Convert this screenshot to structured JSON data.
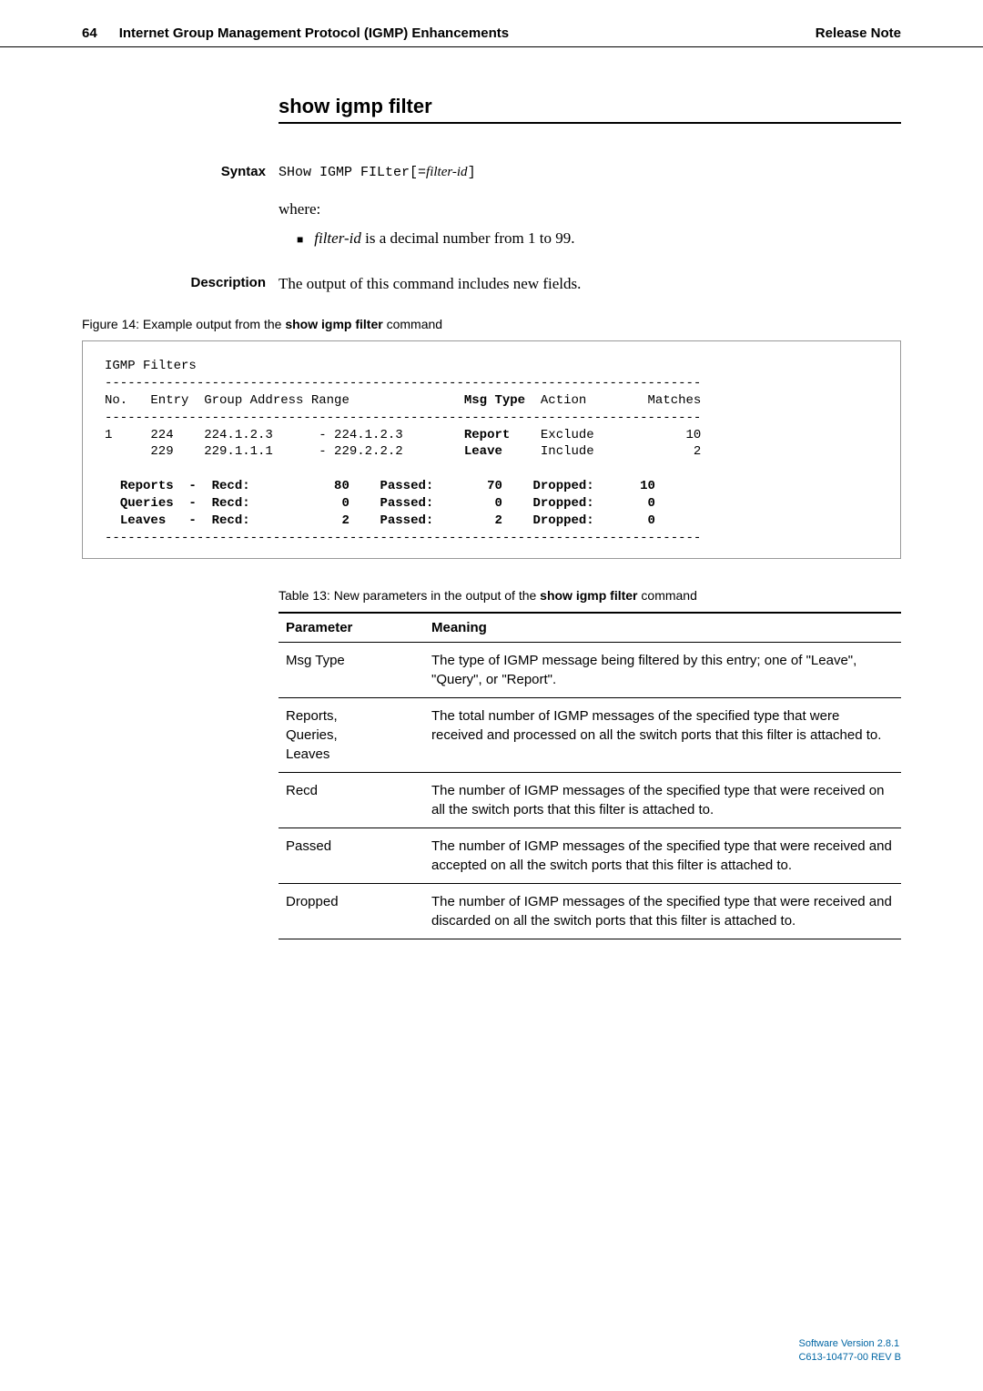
{
  "header": {
    "page_number": "64",
    "chapter_title": "Internet Group Management Protocol (IGMP) Enhancements",
    "note_label": "Release Note"
  },
  "section_title": "show igmp filter",
  "syntax": {
    "label": "Syntax",
    "command_prefix": "SHow IGMP FILter[=",
    "command_param": "filter-id",
    "command_suffix": "]",
    "where_label": "where:",
    "bullet_param": "filter-id",
    "bullet_rest": " is a decimal number from 1 to 99."
  },
  "description": {
    "label": "Description",
    "text": "The output of this command includes new fields."
  },
  "figure_caption_prefix": "Figure 14: Example output from the ",
  "figure_caption_bold": "show igmp filter",
  "figure_caption_suffix": " command",
  "code_output": {
    "title_line": "IGMP Filters",
    "hr": "------------------------------------------------------------------------------",
    "header_cols": {
      "no": "No.",
      "entry": "Entry",
      "group": "Group Address Range",
      "msgtype": "Msg Type",
      "action": "Action",
      "matches": "Matches"
    },
    "rows": [
      {
        "no": "1",
        "entry": "224",
        "group_from": "224.1.2.3",
        "group_to": "- 224.1.2.3",
        "msgtype": "Report",
        "action": "Exclude",
        "matches": "10"
      },
      {
        "no": "",
        "entry": "229",
        "group_from": "229.1.1.1",
        "group_to": "- 229.2.2.2",
        "msgtype": "Leave",
        "action": "Include",
        "matches": "2"
      }
    ],
    "summary": [
      {
        "label": "Reports",
        "recd_label": "Recd:",
        "recd": "80",
        "passed_label": "Passed:",
        "passed": "70",
        "dropped_label": "Dropped:",
        "dropped": "10"
      },
      {
        "label": "Queries",
        "recd_label": "Recd:",
        "recd": "0",
        "passed_label": "Passed:",
        "passed": "0",
        "dropped_label": "Dropped:",
        "dropped": "0"
      },
      {
        "label": "Leaves",
        "recd_label": "Recd:",
        "recd": "2",
        "passed_label": "Passed:",
        "passed": "2",
        "dropped_label": "Dropped:",
        "dropped": "0"
      }
    ]
  },
  "table_caption_prefix": "Table 13: New parameters in the output of the ",
  "table_caption_bold": "show igmp filter",
  "table_caption_suffix": " command",
  "param_table": {
    "headers": {
      "parameter": "Parameter",
      "meaning": "Meaning"
    },
    "rows": [
      {
        "param": "Msg Type",
        "meaning": "The type of IGMP message being filtered by this entry; one of \"Leave\", \"Query\", or \"Report\".",
        "indent": false
      },
      {
        "param": "Reports,\nQueries,\nLeaves",
        "meaning": "The total number of IGMP messages of the specified type that were received and processed on all the switch ports that this filter is attached to.",
        "indent": false
      },
      {
        "param": "Recd",
        "meaning": "The number of IGMP messages of the specified type that were received on all the switch ports that this filter is attached to.",
        "indent": true
      },
      {
        "param": "Passed",
        "meaning": "The number of IGMP messages of the specified type that were received and accepted on all the switch ports that this filter is attached to.",
        "indent": true
      },
      {
        "param": "Dropped",
        "meaning": "The number of IGMP messages of the specified type that were received and discarded on all the switch ports that this filter is attached to.",
        "indent": true
      }
    ]
  },
  "footer": {
    "line1": "Software Version 2.8.1",
    "line2": "C613-10477-00 REV B"
  }
}
